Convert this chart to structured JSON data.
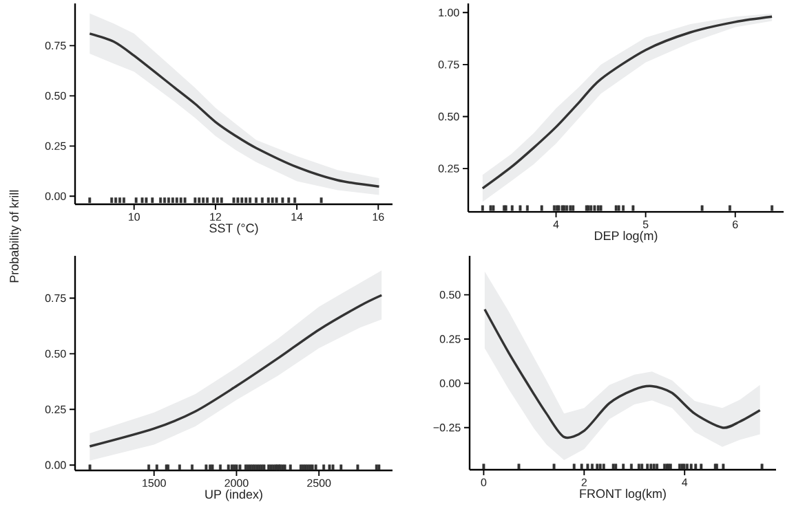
{
  "chart_data": [
    {
      "type": "line",
      "xlabel": "SST (°C)",
      "ylabel": "Probability of krill",
      "xlim": [
        8.55,
        16.35
      ],
      "ylim": [
        -0.04,
        0.96
      ],
      "xticks": [
        10,
        12,
        14,
        16
      ],
      "yticks": [
        {
          "value": 0,
          "label": "0.00"
        },
        {
          "value": 0.25,
          "label": "0.25"
        },
        {
          "value": 0.5,
          "label": "0.50"
        },
        {
          "value": 0.75,
          "label": "0.75"
        }
      ],
      "series": [
        {
          "type": "line",
          "color": "#333333",
          "x": [
            8.91,
            9.5,
            10,
            11,
            11.5,
            12,
            12.5,
            13,
            14,
            15,
            16.02
          ],
          "values": [
            0.81,
            0.77,
            0.7,
            0.54,
            0.46,
            0.37,
            0.3,
            0.24,
            0.145,
            0.08,
            0.048
          ],
          "lower": [
            0.71,
            0.66,
            0.62,
            0.47,
            0.39,
            0.3,
            0.23,
            0.17,
            0.075,
            0.03,
            0.006
          ],
          "upper": [
            0.91,
            0.86,
            0.81,
            0.63,
            0.54,
            0.44,
            0.36,
            0.28,
            0.2,
            0.13,
            0.09
          ]
        },
        {
          "type": "scatter",
          "color": "#333333",
          "x": [
            8.91,
            9.45,
            9.55,
            9.65,
            9.75,
            10.05,
            10.2,
            10.3,
            10.45,
            10.65,
            10.75,
            10.85,
            10.95,
            11.05,
            11.15,
            11.25,
            11.5,
            11.6,
            11.7,
            11.8,
            11.95,
            12.05,
            12.15,
            12.45,
            12.55,
            12.65,
            12.75,
            12.85,
            13.0,
            13.15,
            13.3,
            13.4,
            13.5,
            13.65,
            13.8,
            13.95,
            14.6
          ],
          "values": [
            -0.02,
            -0.02,
            -0.02,
            -0.02,
            -0.02,
            -0.02,
            -0.02,
            -0.02,
            -0.02,
            -0.02,
            -0.02,
            -0.02,
            -0.02,
            -0.02,
            -0.02,
            -0.02,
            -0.02,
            -0.02,
            -0.02,
            -0.02,
            -0.02,
            -0.02,
            -0.02,
            -0.02,
            -0.02,
            -0.02,
            -0.02,
            -0.02,
            -0.02,
            -0.02,
            -0.02,
            -0.02,
            -0.02,
            -0.02,
            -0.02,
            -0.02,
            -0.02
          ]
        }
      ]
    },
    {
      "type": "line",
      "xlabel": "DEP log(m)",
      "xlim": [
        3.02,
        6.54
      ],
      "ylim": [
        0.042,
        1.044
      ],
      "xticks": [
        4,
        5,
        6
      ],
      "yticks": [
        {
          "value": 0.25,
          "label": "0.25"
        },
        {
          "value": 0.5,
          "label": "0.50"
        },
        {
          "value": 0.75,
          "label": "0.75"
        },
        {
          "value": 1,
          "label": "1.00"
        }
      ],
      "series": [
        {
          "type": "line",
          "color": "#333333",
          "x": [
            3.18,
            3.5,
            3.75,
            4,
            4.25,
            4.5,
            5,
            5.5,
            6,
            6.41
          ],
          "values": [
            0.155,
            0.257,
            0.35,
            0.45,
            0.565,
            0.68,
            0.82,
            0.905,
            0.955,
            0.98
          ],
          "lower": [
            0.09,
            0.19,
            0.27,
            0.37,
            0.49,
            0.61,
            0.76,
            0.855,
            0.93,
            0.96
          ],
          "upper": [
            0.22,
            0.32,
            0.42,
            0.54,
            0.64,
            0.75,
            0.88,
            0.945,
            0.98,
            0.995
          ]
        },
        {
          "type": "scatter",
          "color": "#333333",
          "x": [
            3.18,
            3.27,
            3.3,
            3.42,
            3.44,
            3.51,
            3.6,
            3.68,
            3.84,
            3.98,
            4.01,
            4.03,
            4.07,
            4.09,
            4.12,
            4.16,
            4.19,
            4.34,
            4.36,
            4.39,
            4.43,
            4.47,
            4.5,
            4.67,
            4.7,
            4.75,
            4.86,
            5.63,
            5.94,
            6.41
          ],
          "values": [
            0.06,
            0.06,
            0.06,
            0.06,
            0.06,
            0.06,
            0.06,
            0.06,
            0.06,
            0.06,
            0.06,
            0.06,
            0.06,
            0.06,
            0.06,
            0.06,
            0.06,
            0.06,
            0.06,
            0.06,
            0.06,
            0.06,
            0.06,
            0.06,
            0.06,
            0.06,
            0.06,
            0.06,
            0.06,
            0.06
          ]
        }
      ]
    },
    {
      "type": "line",
      "xlabel": "UP (index)",
      "xlim": [
        1021,
        2946
      ],
      "ylim": [
        -0.024,
        0.94
      ],
      "xticks": [
        1500,
        2000,
        2500
      ],
      "yticks": [
        {
          "value": 0,
          "label": "0.00"
        },
        {
          "value": 0.25,
          "label": "0.25"
        },
        {
          "value": 0.5,
          "label": "0.50"
        },
        {
          "value": 0.75,
          "label": "0.75"
        }
      ],
      "series": [
        {
          "type": "line",
          "color": "#333333",
          "x": [
            1110,
            1500,
            1750,
            2000,
            2250,
            2500,
            2750,
            2880
          ],
          "values": [
            0.084,
            0.164,
            0.241,
            0.355,
            0.479,
            0.608,
            0.716,
            0.763
          ],
          "lower": [
            0.02,
            0.092,
            0.174,
            0.293,
            0.401,
            0.525,
            0.618,
            0.654
          ],
          "upper": [
            0.143,
            0.236,
            0.319,
            0.438,
            0.567,
            0.711,
            0.819,
            0.874
          ]
        },
        {
          "type": "scatter",
          "color": "#333333",
          "x": [
            1111,
            1468,
            1517,
            1575,
            1585,
            1655,
            1731,
            1816,
            1840,
            1854,
            1902,
            1951,
            1972,
            1986,
            2000,
            2021,
            2056,
            2070,
            2084,
            2098,
            2111,
            2125,
            2139,
            2153,
            2167,
            2195,
            2209,
            2223,
            2237,
            2246,
            2258,
            2265,
            2279,
            2293,
            2327,
            2390,
            2404,
            2418,
            2432,
            2446,
            2460,
            2481,
            2529,
            2564,
            2585,
            2634,
            2735,
            2849,
            2864
          ],
          "values": [
            -0.01,
            -0.01,
            -0.01,
            -0.01,
            -0.01,
            -0.01,
            -0.01,
            -0.01,
            -0.01,
            -0.01,
            -0.01,
            -0.01,
            -0.01,
            -0.01,
            -0.01,
            -0.01,
            -0.01,
            -0.01,
            -0.01,
            -0.01,
            -0.01,
            -0.01,
            -0.01,
            -0.01,
            -0.01,
            -0.01,
            -0.01,
            -0.01,
            -0.01,
            -0.01,
            -0.01,
            -0.01,
            -0.01,
            -0.01,
            -0.01,
            -0.01,
            -0.01,
            -0.01,
            -0.01,
            -0.01,
            -0.01,
            -0.01,
            -0.01,
            -0.01,
            -0.01,
            -0.01,
            -0.01,
            -0.01,
            -0.01
          ]
        }
      ]
    },
    {
      "type": "line",
      "xlabel": "FRONT log(km)",
      "xlim": [
        -0.28,
        5.82
      ],
      "ylim": [
        -0.488,
        0.72
      ],
      "xticks": [
        0,
        2,
        4
      ],
      "yticks": [
        {
          "value": -0.25,
          "label": "−0.25"
        },
        {
          "value": 0,
          "label": "0.00"
        },
        {
          "value": 0.25,
          "label": "0.25"
        },
        {
          "value": 0.5,
          "label": "0.50"
        }
      ],
      "series": [
        {
          "type": "line",
          "color": "#333333",
          "x": [
            0.02,
            0.5,
            1,
            1.25,
            1.6,
            2,
            2.5,
            3,
            3.35,
            3.75,
            4.2,
            4.75,
            5.1,
            5.5
          ],
          "values": [
            0.418,
            0.172,
            -0.061,
            -0.171,
            -0.303,
            -0.268,
            -0.113,
            -0.035,
            -0.016,
            -0.054,
            -0.171,
            -0.25,
            -0.216,
            -0.152
          ],
          "lower": [
            0.198,
            -0.035,
            -0.255,
            -0.346,
            -0.434,
            -0.372,
            -0.203,
            -0.119,
            -0.097,
            -0.139,
            -0.275,
            -0.359,
            -0.319,
            -0.288
          ],
          "upper": [
            0.632,
            0.405,
            0.146,
            0.017,
            -0.171,
            -0.139,
            -0.009,
            0.049,
            0.066,
            0.017,
            -0.1,
            -0.139,
            -0.093,
            -0.009
          ]
        },
        {
          "type": "scatter",
          "color": "#333333",
          "x": [
            0,
            0.7,
            1.4,
            1.8,
            1.95,
            2.07,
            2.16,
            2.26,
            2.32,
            2.39,
            2.58,
            2.63,
            2.78,
            2.94,
            3.09,
            3.15,
            3.26,
            3.33,
            3.39,
            3.45,
            3.6,
            3.65,
            3.68,
            3.72,
            3.9,
            3.95,
            3.99,
            4.05,
            4.13,
            4.22,
            4.33,
            4.61,
            4.64,
            4.77,
            5.54
          ],
          "values": [
            -0.47,
            -0.47,
            -0.47,
            -0.47,
            -0.47,
            -0.47,
            -0.47,
            -0.47,
            -0.47,
            -0.47,
            -0.47,
            -0.47,
            -0.47,
            -0.47,
            -0.47,
            -0.47,
            -0.47,
            -0.47,
            -0.47,
            -0.47,
            -0.47,
            -0.47,
            -0.47,
            -0.47,
            -0.47,
            -0.47,
            -0.47,
            -0.47,
            -0.47,
            -0.47,
            -0.47,
            -0.47,
            -0.47,
            -0.47,
            -0.47
          ]
        }
      ]
    }
  ]
}
